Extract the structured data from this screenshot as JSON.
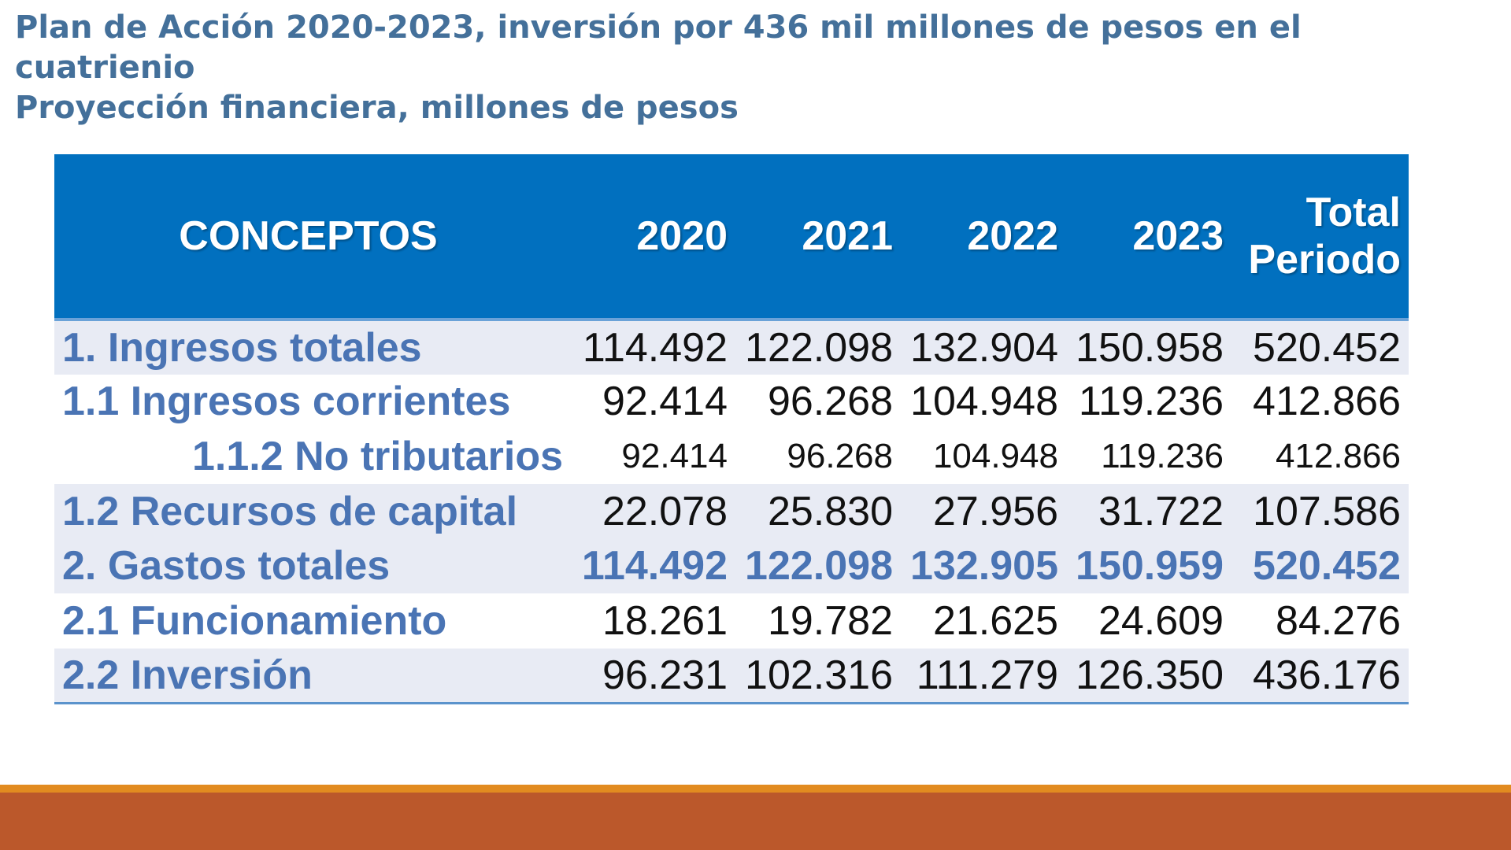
{
  "title": {
    "line1": "Plan de Acción 2020-2023, inversión por 436 mil millones de pesos en el cuatrienio",
    "line2": "Proyección financiera, millones de pesos"
  },
  "table": {
    "headers": {
      "concept": "CONCEPTOS",
      "y2020": "2020",
      "y2021": "2021",
      "y2022": "2022",
      "y2023": "2023",
      "total_line1": "Total",
      "total_line2": "Periodo"
    },
    "rows": [
      {
        "concept": "1. Ingresos totales",
        "y2020": "114.492",
        "y2021": "122.098",
        "y2022": "132.904",
        "y2023": "150.958",
        "total": "520.452"
      },
      {
        "concept": "1.1 Ingresos corrientes",
        "y2020": "92.414",
        "y2021": "96.268",
        "y2022": "104.948",
        "y2023": "119.236",
        "total": "412.866"
      },
      {
        "concept": "1.1.2 No tributarios",
        "y2020": "92.414",
        "y2021": "96.268",
        "y2022": "104.948",
        "y2023": "119.236",
        "total": "412.866"
      },
      {
        "concept": "1.2 Recursos  de capital",
        "y2020": "22.078",
        "y2021": "25.830",
        "y2022": "27.956",
        "y2023": "31.722",
        "total": "107.586"
      },
      {
        "concept": "2. Gastos totales",
        "y2020": "114.492",
        "y2021": "122.098",
        "y2022": "132.905",
        "y2023": "150.959",
        "total": "520.452"
      },
      {
        "concept": "2.1 Funcionamiento",
        "y2020": "18.261",
        "y2021": "19.782",
        "y2022": "21.625",
        "y2023": "24.609",
        "total": "84.276"
      },
      {
        "concept": "2.2 Inversión",
        "y2020": "96.231",
        "y2021": "102.316",
        "y2022": "111.279",
        "y2023": "126.350",
        "total": "436.176"
      }
    ]
  },
  "colors": {
    "title": "#44709a",
    "header_bg": "#0170bf",
    "concept_text": "#4a74b4",
    "row_shade": "#e8ebf4",
    "footer_orange": "#e28b20",
    "footer_rust": "#bb582b"
  }
}
